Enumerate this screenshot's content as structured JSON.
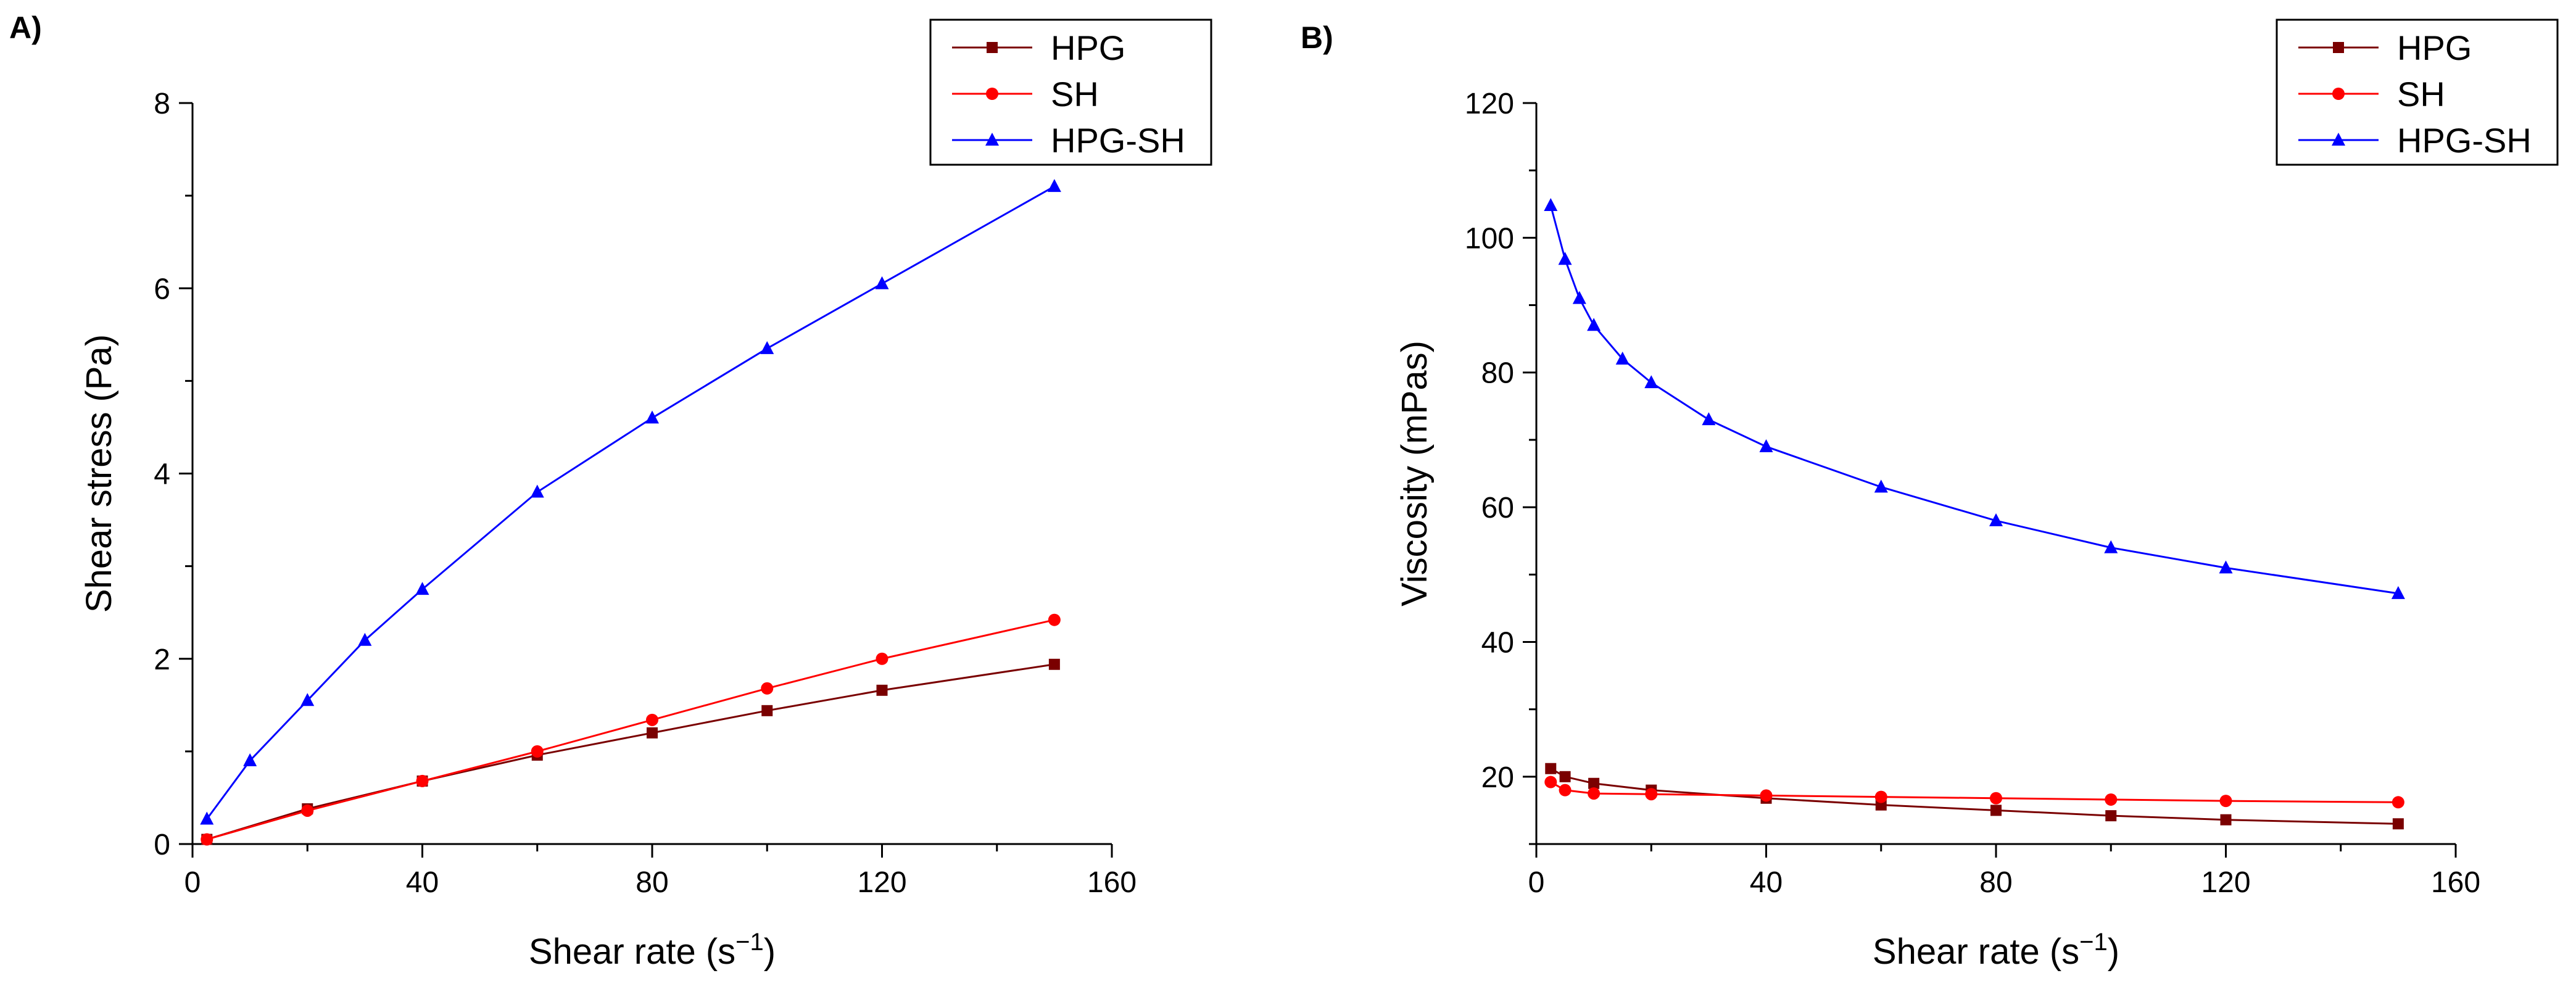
{
  "colors": {
    "HPG": "#7a0000",
    "SH": "#ff0000",
    "HPG-SH": "#0000ff"
  },
  "chart_data": [
    {
      "panel_label": "A)",
      "type": "line",
      "xlabel": "Shear rate (s",
      "xlabel_sup": "−1",
      "xlabel_end": ")",
      "ylabel": "Shear stress (Pa)",
      "xlim": [
        0,
        160
      ],
      "ylim": [
        0,
        8
      ],
      "xticks": [
        0,
        40,
        80,
        120,
        160
      ],
      "yticks": [
        0,
        2,
        4,
        6,
        8
      ],
      "legend_position": "top-right",
      "legend": [
        "HPG",
        "SH",
        "HPG-SH"
      ],
      "series": [
        {
          "name": "HPG",
          "marker": "square",
          "x": [
            2.5,
            20,
            40,
            60,
            80,
            100,
            120,
            150
          ],
          "y": [
            0.05,
            0.38,
            0.68,
            0.96,
            1.2,
            1.44,
            1.66,
            1.94
          ]
        },
        {
          "name": "SH",
          "marker": "circle",
          "x": [
            2.5,
            20,
            40,
            60,
            80,
            100,
            120,
            150
          ],
          "y": [
            0.05,
            0.36,
            0.68,
            1.0,
            1.34,
            1.68,
            2.0,
            2.42
          ]
        },
        {
          "name": "HPG-SH",
          "marker": "triangle",
          "x": [
            2.5,
            10,
            20,
            30,
            40,
            60,
            80,
            100,
            120,
            150
          ],
          "y": [
            0.27,
            0.9,
            1.55,
            2.2,
            2.75,
            3.8,
            4.6,
            5.35,
            6.05,
            7.1
          ]
        }
      ]
    },
    {
      "panel_label": "B)",
      "type": "line",
      "xlabel": "Shear rate (s",
      "xlabel_sup": "−1",
      "xlabel_end": ")",
      "ylabel": "Viscosity (mPas)",
      "xlim": [
        0,
        160
      ],
      "ylim": [
        10,
        120
      ],
      "xticks": [
        0,
        40,
        80,
        120,
        160
      ],
      "yticks": [
        20,
        40,
        60,
        80,
        100,
        120
      ],
      "legend_position": "top-right",
      "legend": [
        "HPG",
        "SH",
        "HPG-SH"
      ],
      "series": [
        {
          "name": "HPG",
          "marker": "square",
          "x": [
            2.5,
            5,
            10,
            20,
            40,
            60,
            80,
            100,
            120,
            150
          ],
          "y": [
            21.2,
            20.0,
            19.0,
            18.0,
            16.8,
            15.8,
            15.0,
            14.2,
            13.6,
            13.0
          ]
        },
        {
          "name": "SH",
          "marker": "circle",
          "x": [
            2.5,
            5,
            10,
            20,
            40,
            60,
            80,
            100,
            120,
            150
          ],
          "y": [
            19.2,
            18.0,
            17.5,
            17.4,
            17.2,
            17.0,
            16.8,
            16.6,
            16.4,
            16.2
          ]
        },
        {
          "name": "HPG-SH",
          "marker": "triangle",
          "x": [
            2.5,
            5,
            7.5,
            10,
            15,
            20,
            30,
            40,
            60,
            80,
            100,
            120,
            150
          ],
          "y": [
            104.8,
            96.8,
            91.0,
            87.0,
            82.0,
            78.5,
            73.0,
            69.0,
            63.0,
            58.0,
            54.0,
            51.0,
            47.2
          ]
        }
      ]
    }
  ]
}
